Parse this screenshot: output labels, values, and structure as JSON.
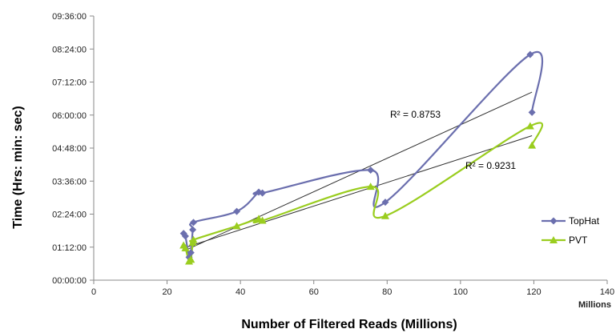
{
  "chart_data": {
    "type": "scatter",
    "xlabel": "Number of  Filtered Reads (Millions)",
    "ylabel": "Time (Hrs: min: sec)",
    "x_unit_label": "Millions",
    "xlim": [
      0,
      140
    ],
    "x_ticks": [
      0,
      20,
      40,
      60,
      80,
      100,
      120,
      140
    ],
    "ylim_seconds": [
      0,
      34560
    ],
    "y_ticks": [
      {
        "seconds": 0,
        "label": "00:00:00"
      },
      {
        "seconds": 4320,
        "label": "01:12:00"
      },
      {
        "seconds": 8640,
        "label": "02:24:00"
      },
      {
        "seconds": 12960,
        "label": "03:36:00"
      },
      {
        "seconds": 17280,
        "label": "04:48:00"
      },
      {
        "seconds": 21600,
        "label": "06:00:00"
      },
      {
        "seconds": 25920,
        "label": "07:12:00"
      },
      {
        "seconds": 30240,
        "label": "08:24:00"
      },
      {
        "seconds": 34560,
        "label": "09:36:00"
      }
    ],
    "grid": false,
    "legend_position": "right",
    "series": [
      {
        "name": "TopHat",
        "color": "#6b6fae",
        "marker": "diamond",
        "points": [
          [
            24.5,
            6120
          ],
          [
            25.0,
            5760
          ],
          [
            26.0,
            3000
          ],
          [
            26.5,
            3600
          ],
          [
            27.0,
            6600
          ],
          [
            27.2,
            7560
          ],
          [
            39.0,
            9000
          ],
          [
            45.0,
            11520
          ],
          [
            46.0,
            11400
          ],
          [
            75.5,
            14400
          ],
          [
            79.5,
            10200
          ],
          [
            119.0,
            29520
          ],
          [
            119.5,
            21960
          ]
        ],
        "trendline": {
          "r2_label": "R² = 0.8753",
          "r2": 0.8753,
          "from": [
            24.5,
            3800
          ],
          "to": [
            119.5,
            24600
          ]
        }
      },
      {
        "name": "PVT",
        "color": "#9acd1f",
        "marker": "triangle",
        "points": [
          [
            24.5,
            4560
          ],
          [
            25.0,
            4200
          ],
          [
            26.0,
            2460
          ],
          [
            26.5,
            2700
          ],
          [
            27.0,
            4920
          ],
          [
            27.2,
            5280
          ],
          [
            39.0,
            7080
          ],
          [
            45.0,
            8040
          ],
          [
            46.0,
            7800
          ],
          [
            75.5,
            12240
          ],
          [
            79.5,
            8400
          ],
          [
            119.0,
            20160
          ],
          [
            119.5,
            17640
          ]
        ],
        "trendline": {
          "r2_label": "R² = 0.9231",
          "r2": 0.9231,
          "from": [
            24.5,
            4200
          ],
          "to": [
            119.5,
            18900
          ]
        }
      }
    ]
  }
}
